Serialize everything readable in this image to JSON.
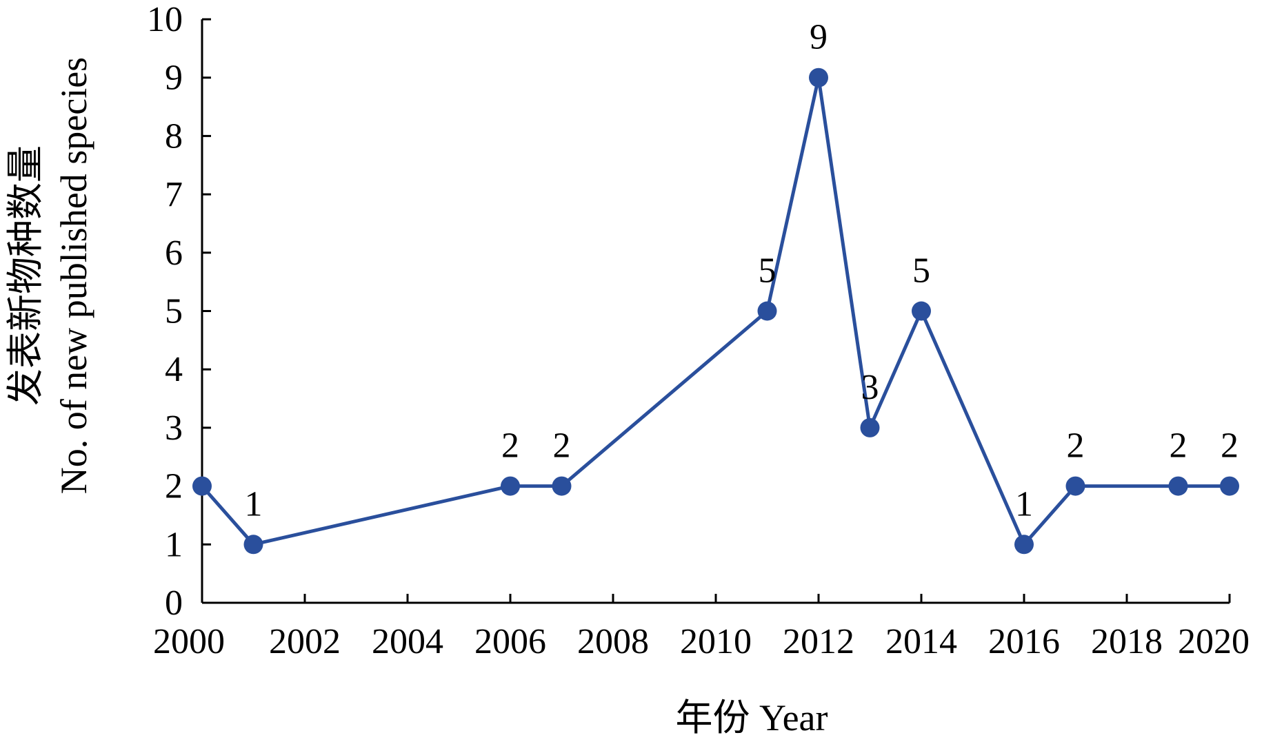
{
  "chart_data": {
    "type": "line",
    "title": "",
    "xlabel": "年份 Year",
    "ylabel_line1": "发表新物种数量",
    "ylabel_line2": "No. of new published species",
    "xlim": [
      2000,
      2020
    ],
    "ylim": [
      0,
      10
    ],
    "x_ticks": [
      2000,
      2002,
      2004,
      2006,
      2008,
      2010,
      2012,
      2014,
      2016,
      2018,
      2020
    ],
    "y_ticks": [
      0,
      1,
      2,
      3,
      4,
      5,
      6,
      7,
      8,
      9,
      10
    ],
    "grid": false,
    "legend": "none",
    "series": [
      {
        "color": "#2a4f9c",
        "x": [
          2000,
          2001,
          2006,
          2007,
          2011,
          2012,
          2013,
          2014,
          2016,
          2017,
          2019,
          2020
        ],
        "y": [
          2,
          1,
          2,
          2,
          5,
          9,
          3,
          5,
          1,
          2,
          2,
          2
        ],
        "data_labels": [
          "",
          "1",
          "2",
          "2",
          "5",
          "9",
          "3",
          "5",
          "1",
          "2",
          "2",
          "2"
        ]
      }
    ]
  }
}
